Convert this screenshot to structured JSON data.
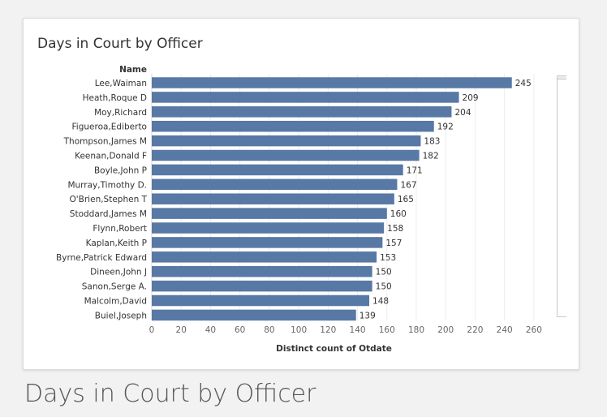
{
  "caption": "Days in Court by Officer",
  "colors": {
    "bar": "#5878a5",
    "grid": "#ececec",
    "text": "#333333"
  },
  "chart_data": {
    "type": "bar",
    "orientation": "horizontal",
    "title": "Days in Court by Officer",
    "row_header": "Name",
    "xlabel": "Distinct count of Otdate",
    "xlim": [
      0,
      270
    ],
    "xticks": [
      0,
      20,
      40,
      60,
      80,
      100,
      120,
      140,
      160,
      180,
      200,
      220,
      240,
      260
    ],
    "categories": [
      "Lee,Waiman",
      "Heath,Roque D",
      "Moy,Richard",
      "Figueroa,Ediberto",
      "Thompson,James M",
      "Keenan,Donald F",
      "Boyle,John P",
      "Murray,Timothy D.",
      "O'Brien,Stephen T",
      "Stoddard,James M",
      "Flynn,Robert",
      "Kaplan,Keith P",
      "Byrne,Patrick Edward",
      "Dineen,John J",
      "Sanon,Serge A.",
      "Malcolm,David",
      "Buiel,Joseph"
    ],
    "values": [
      245,
      209,
      204,
      192,
      183,
      182,
      171,
      167,
      165,
      160,
      158,
      157,
      153,
      150,
      150,
      148,
      139
    ],
    "grid": true,
    "data_labels": true
  }
}
